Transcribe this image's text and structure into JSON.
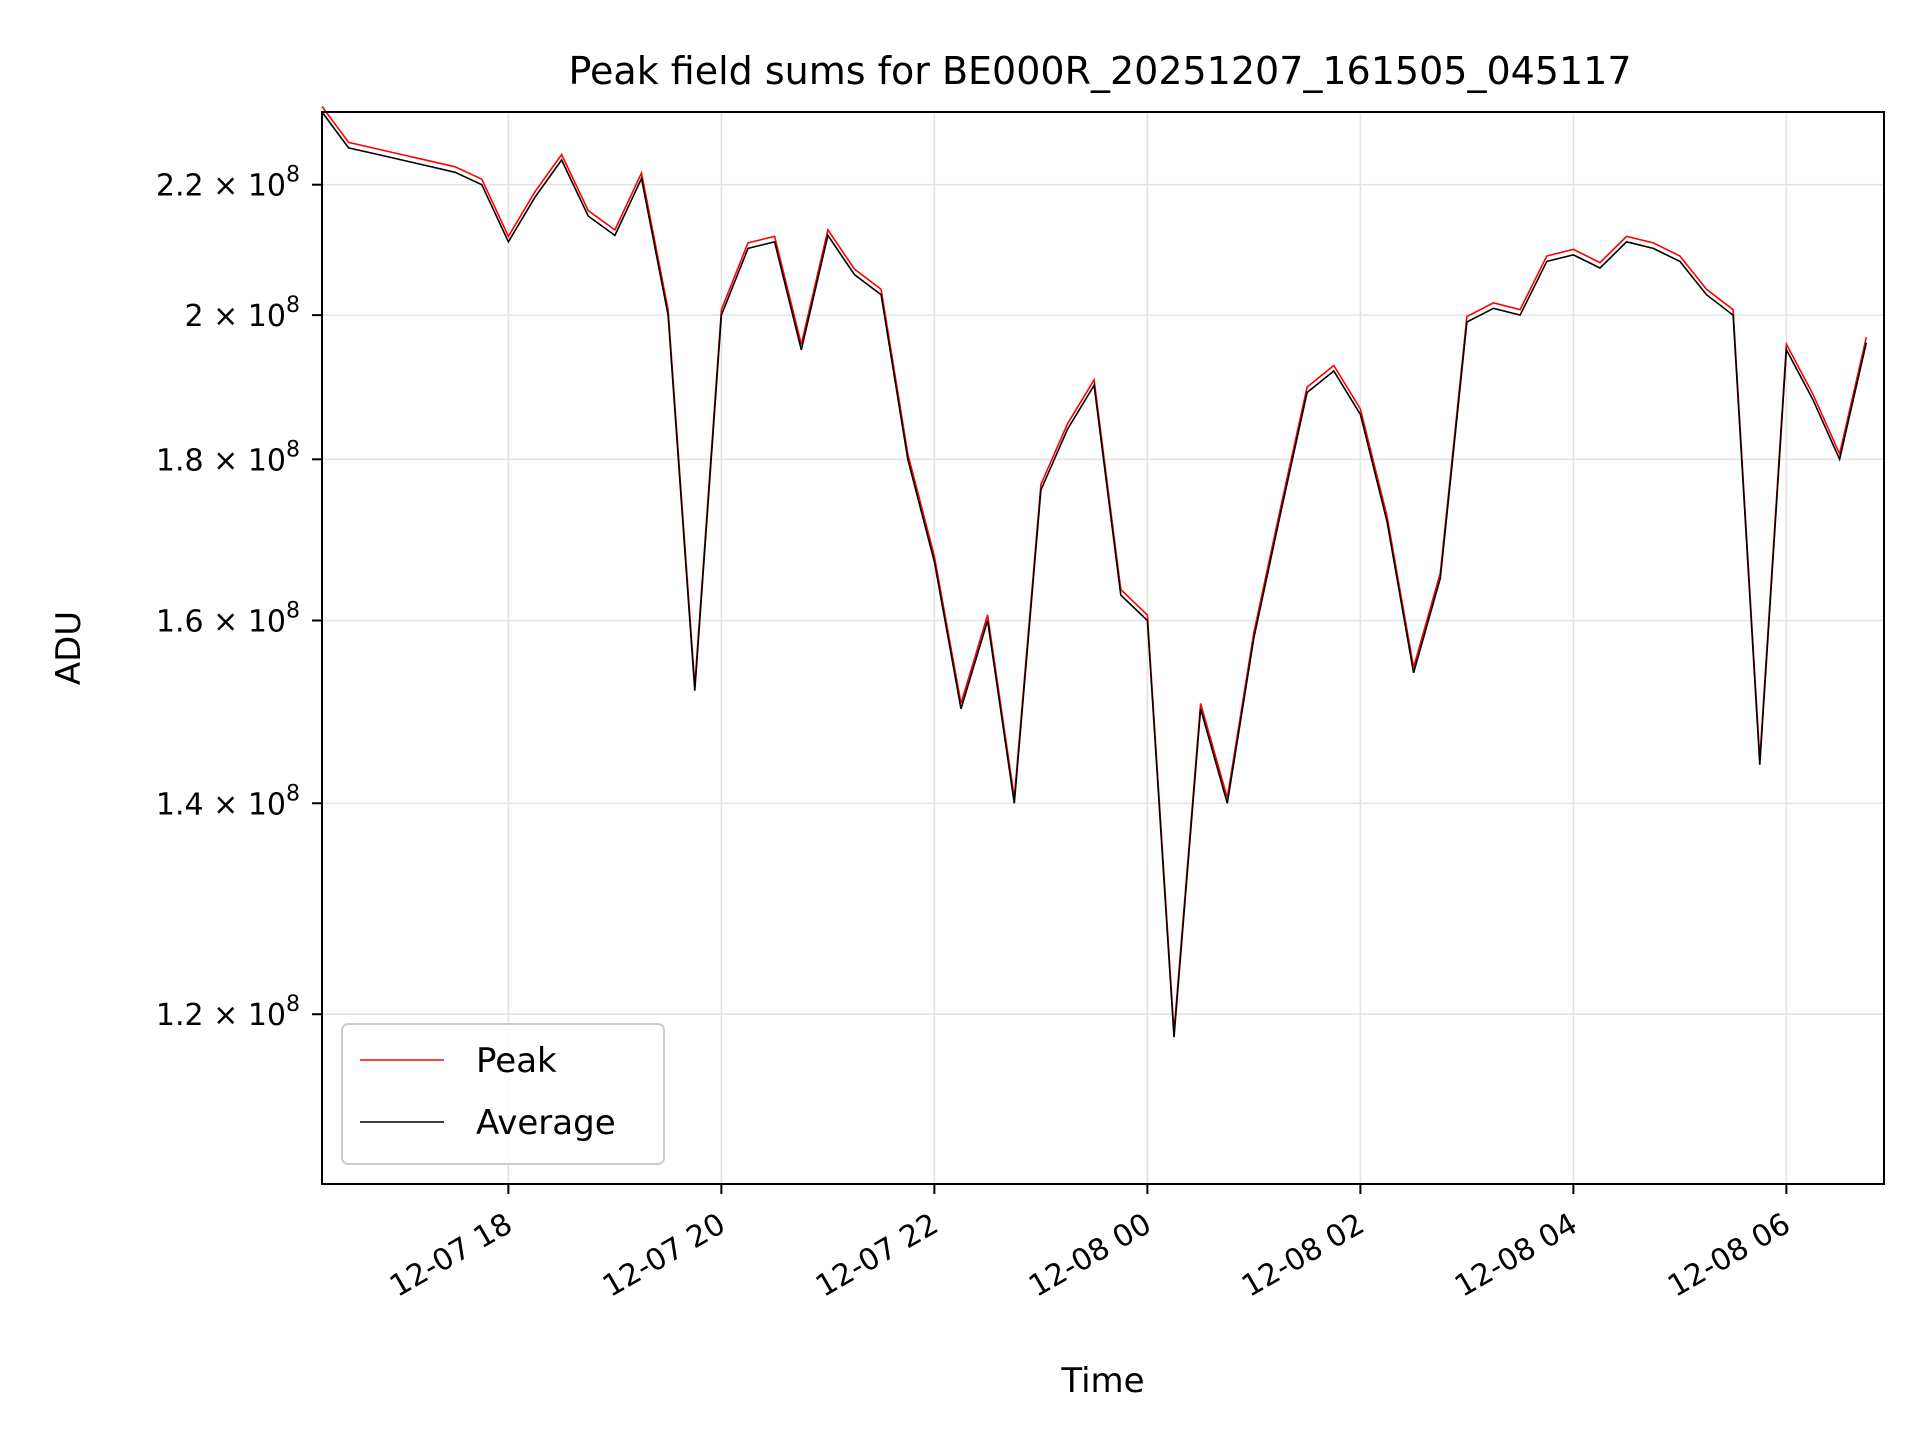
{
  "chart_data": {
    "type": "line",
    "title": "Peak field sums for BE000R_20251207_161505_045117",
    "xlabel": "Time",
    "ylabel": "ADU",
    "y_scale": "log",
    "ylim": [
      106000000,
      232000000
    ],
    "xlim": [
      "2025-12-07 16:15",
      "2025-12-08 06:55"
    ],
    "x_ticks": [
      {
        "value": "2025-12-07 18:00",
        "label": "12-07 18"
      },
      {
        "value": "2025-12-07 20:00",
        "label": "12-07 20"
      },
      {
        "value": "2025-12-07 22:00",
        "label": "12-07 22"
      },
      {
        "value": "2025-12-08 00:00",
        "label": "12-08 00"
      },
      {
        "value": "2025-12-08 02:00",
        "label": "12-08 02"
      },
      {
        "value": "2025-12-08 04:00",
        "label": "12-08 04"
      },
      {
        "value": "2025-12-08 06:00",
        "label": "12-08 06"
      }
    ],
    "y_ticks": [
      {
        "value": 120000000,
        "mantissa": "1.2",
        "exp": "8"
      },
      {
        "value": 140000000,
        "mantissa": "1.4",
        "exp": "8"
      },
      {
        "value": 160000000,
        "mantissa": "1.6",
        "exp": "8"
      },
      {
        "value": 180000000,
        "mantissa": "1.8",
        "exp": "8"
      },
      {
        "value": 200000000,
        "mantissa": "2",
        "exp": "8"
      },
      {
        "value": 220000000,
        "mantissa": "2.2",
        "exp": "8"
      }
    ],
    "grid": true,
    "legend": {
      "position": "lower-left",
      "entries": [
        "Peak",
        "Average"
      ]
    },
    "series": [
      {
        "name": "Peak",
        "color": "#ff0000"
      },
      {
        "name": "Average",
        "color": "#000000"
      }
    ],
    "x": [
      "2025-12-07 16:15",
      "2025-12-07 16:30",
      "2025-12-07 16:45",
      "2025-12-07 17:00",
      "2025-12-07 17:15",
      "2025-12-07 17:30",
      "2025-12-07 17:45",
      "2025-12-07 18:00",
      "2025-12-07 18:15",
      "2025-12-07 18:30",
      "2025-12-07 18:45",
      "2025-12-07 19:00",
      "2025-12-07 19:15",
      "2025-12-07 19:30",
      "2025-12-07 19:45",
      "2025-12-07 20:00",
      "2025-12-07 20:15",
      "2025-12-07 20:30",
      "2025-12-07 20:45",
      "2025-12-07 21:00",
      "2025-12-07 21:15",
      "2025-12-07 21:30",
      "2025-12-07 21:45",
      "2025-12-07 22:00",
      "2025-12-07 22:15",
      "2025-12-07 22:30",
      "2025-12-07 22:45",
      "2025-12-07 23:00",
      "2025-12-07 23:15",
      "2025-12-07 23:30",
      "2025-12-07 23:45",
      "2025-12-08 00:00",
      "2025-12-08 00:15",
      "2025-12-08 00:30",
      "2025-12-08 00:45",
      "2025-12-08 01:00",
      "2025-12-08 01:15",
      "2025-12-08 01:30",
      "2025-12-08 01:45",
      "2025-12-08 02:00",
      "2025-12-08 02:15",
      "2025-12-08 02:30",
      "2025-12-08 02:45",
      "2025-12-08 03:00",
      "2025-12-08 03:15",
      "2025-12-08 03:30",
      "2025-12-08 03:45",
      "2025-12-08 04:00",
      "2025-12-08 04:15",
      "2025-12-08 04:30",
      "2025-12-08 04:45",
      "2025-12-08 05:00",
      "2025-12-08 05:15",
      "2025-12-08 05:30",
      "2025-12-08 05:45",
      "2025-12-08 06:00",
      "2025-12-08 06:15",
      "2025-12-08 06:30",
      "2025-12-08 06:45"
    ],
    "avg_values": [
      232000000,
      226000000,
      225000000,
      224000000,
      223000000,
      222000000,
      220000000,
      211000000,
      218000000,
      224000000,
      215000000,
      212000000,
      221000000,
      200000000,
      152000000,
      200000000,
      210000000,
      211000000,
      195000000,
      212000000,
      206000000,
      203000000,
      180000000,
      167000000,
      150000000,
      160000000,
      140000000,
      176000000,
      184000000,
      190000000,
      163000000,
      160000000,
      118000000,
      150000000,
      140000000,
      158000000,
      173000000,
      189000000,
      192000000,
      186000000,
      172000000,
      154000000,
      165000000,
      199000000,
      201000000,
      200000000,
      208000000,
      209000000,
      207000000,
      211000000,
      210000000,
      208000000,
      203000000,
      200000000,
      144000000,
      195000000,
      188000000,
      180000000,
      196000000
    ]
  }
}
